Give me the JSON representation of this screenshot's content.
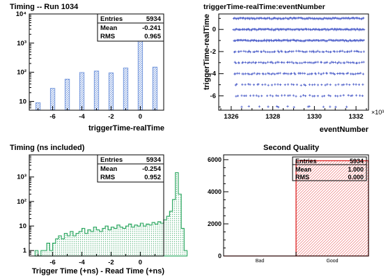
{
  "chart_data": [
    {
      "type": "bar",
      "title": "Timing -- Run 1034",
      "xlabel": "triggerTime-realTime",
      "ylabel": "",
      "xlim": [
        -7.6,
        1.6
      ],
      "ylim": [
        5,
        10000
      ],
      "log_y": true,
      "x_ticks": [
        -6,
        -4,
        -2,
        0
      ],
      "y_tick_labels": [
        "10",
        "10²",
        "10³",
        "10⁴"
      ],
      "bar_color": "#7799dd",
      "bars": [
        {
          "x": -7,
          "y": 9
        },
        {
          "x": -6,
          "y": 28
        },
        {
          "x": -5,
          "y": 58
        },
        {
          "x": -4,
          "y": 98
        },
        {
          "x": -3,
          "y": 110
        },
        {
          "x": -2,
          "y": 95
        },
        {
          "x": -1,
          "y": 140
        },
        {
          "x": 0,
          "y": 5000
        },
        {
          "x": 1,
          "y": 150
        }
      ],
      "stats": {
        "rows": [
          {
            "label": "Entries",
            "value": "5934"
          },
          {
            "label": "Mean",
            "value": "-0.241"
          },
          {
            "label": "RMS",
            "value": "0.965"
          }
        ]
      }
    },
    {
      "type": "scatter",
      "title": "triggerTime-realTime:eventNumber",
      "xlabel": "eventNumber",
      "ylabel": "triggerTime-realTime",
      "x_exponent": "×10³",
      "xlim": [
        1325.4,
        1332.6
      ],
      "ylim": [
        -7.3,
        1.4
      ],
      "x_ticks": [
        1326,
        1328,
        1330,
        1332
      ],
      "y_ticks": [
        0,
        -2,
        -4,
        -6
      ],
      "marker_color": "#5566cc",
      "rows": [
        {
          "y": 1,
          "x_range": [
            1326.1,
            1332.4
          ],
          "density": "dense"
        },
        {
          "y": 0,
          "x_range": [
            1326.1,
            1332.4
          ],
          "density": "dense"
        },
        {
          "y": -1,
          "x_range": [
            1326.1,
            1332.4
          ],
          "density": "dense"
        },
        {
          "y": -2,
          "x_range": [
            1326.1,
            1332.4
          ],
          "density": "medium"
        },
        {
          "y": -3,
          "x_range": [
            1326.1,
            1332.4
          ],
          "density": "medium"
        },
        {
          "y": -4,
          "x_range": [
            1326.1,
            1332.4
          ],
          "density": "medium"
        },
        {
          "y": -5,
          "x_range": [
            1326.1,
            1332.4
          ],
          "density": "sparse"
        },
        {
          "y": -6,
          "x_range": [
            1326.1,
            1332.4
          ],
          "density": "sparse"
        },
        {
          "y": -7,
          "x_range": [
            1326.4,
            1331.6
          ],
          "density": "very-sparse"
        }
      ]
    },
    {
      "type": "area",
      "title": "Timing (ns included)",
      "xlabel": "Trigger Time (+ns) - Read Time (+ns)",
      "ylabel": "",
      "xlim": [
        -7.6,
        1.6
      ],
      "ylim": [
        0.6,
        8000
      ],
      "log_y": true,
      "x_ticks": [
        -6,
        -4,
        -2,
        0
      ],
      "y_tick_labels": [
        "1",
        "10",
        "10²",
        "10³"
      ],
      "line_color": "#33aa66",
      "fill_color": "#aaddbb",
      "bin_width": 0.2,
      "bins_start": -7.2,
      "values": [
        1,
        0,
        1,
        1,
        2,
        1,
        2,
        3,
        4,
        3,
        5,
        4,
        6,
        4,
        5,
        6,
        8,
        5,
        7,
        6,
        9,
        7,
        6,
        8,
        10,
        7,
        9,
        8,
        11,
        9,
        8,
        10,
        12,
        9,
        11,
        10,
        13,
        10,
        12,
        11,
        14,
        12,
        15,
        13,
        18,
        25,
        40,
        120,
        1500,
        200,
        8,
        1
      ],
      "stats": {
        "rows": [
          {
            "label": "Entries",
            "value": "5934"
          },
          {
            "label": "Mean",
            "value": "-0.254"
          },
          {
            "label": "RMS",
            "value": "0.952"
          }
        ]
      }
    },
    {
      "type": "bar",
      "title": "Second Quality",
      "xlabel": "",
      "ylabel": "",
      "categories": [
        "Bad",
        "Good"
      ],
      "values": [
        0,
        5934
      ],
      "ylim": [
        0,
        6300
      ],
      "y_ticks": [
        0,
        2000,
        4000,
        6000
      ],
      "line_color": "#dd2222",
      "hatch_color": "#ee7777",
      "stats": {
        "rows": [
          {
            "label": "Entries",
            "value": "5934"
          },
          {
            "label": "Mean",
            "value": "1.000"
          },
          {
            "label": "RMS",
            "value": "0.000"
          }
        ]
      }
    }
  ]
}
